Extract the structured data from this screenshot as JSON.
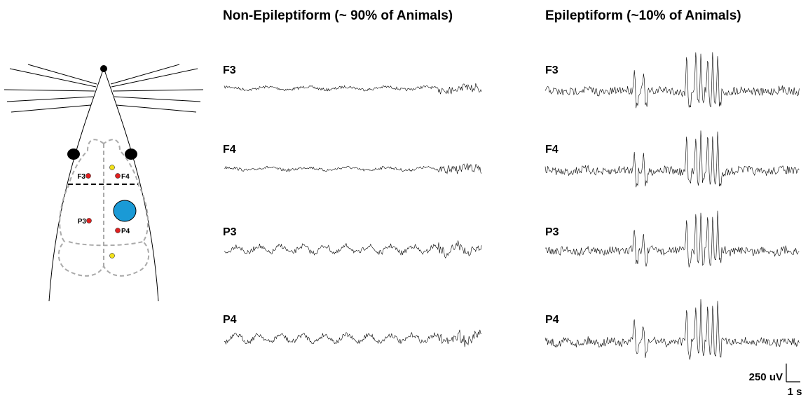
{
  "panels": [
    {
      "title": "Non-Epileptiform (~ 90% of Animals)",
      "channels": [
        "F3",
        "F4",
        "P3",
        "P4"
      ]
    },
    {
      "title": "Epileptiform (~10% of Animals)",
      "channels": [
        "F3",
        "F4",
        "P3",
        "P4"
      ]
    }
  ],
  "diagram": {
    "electrodes": [
      "F3",
      "F4",
      "P3",
      "P4"
    ]
  },
  "scale_bar": {
    "amplitude": "250 uV",
    "time": "1 s"
  }
}
